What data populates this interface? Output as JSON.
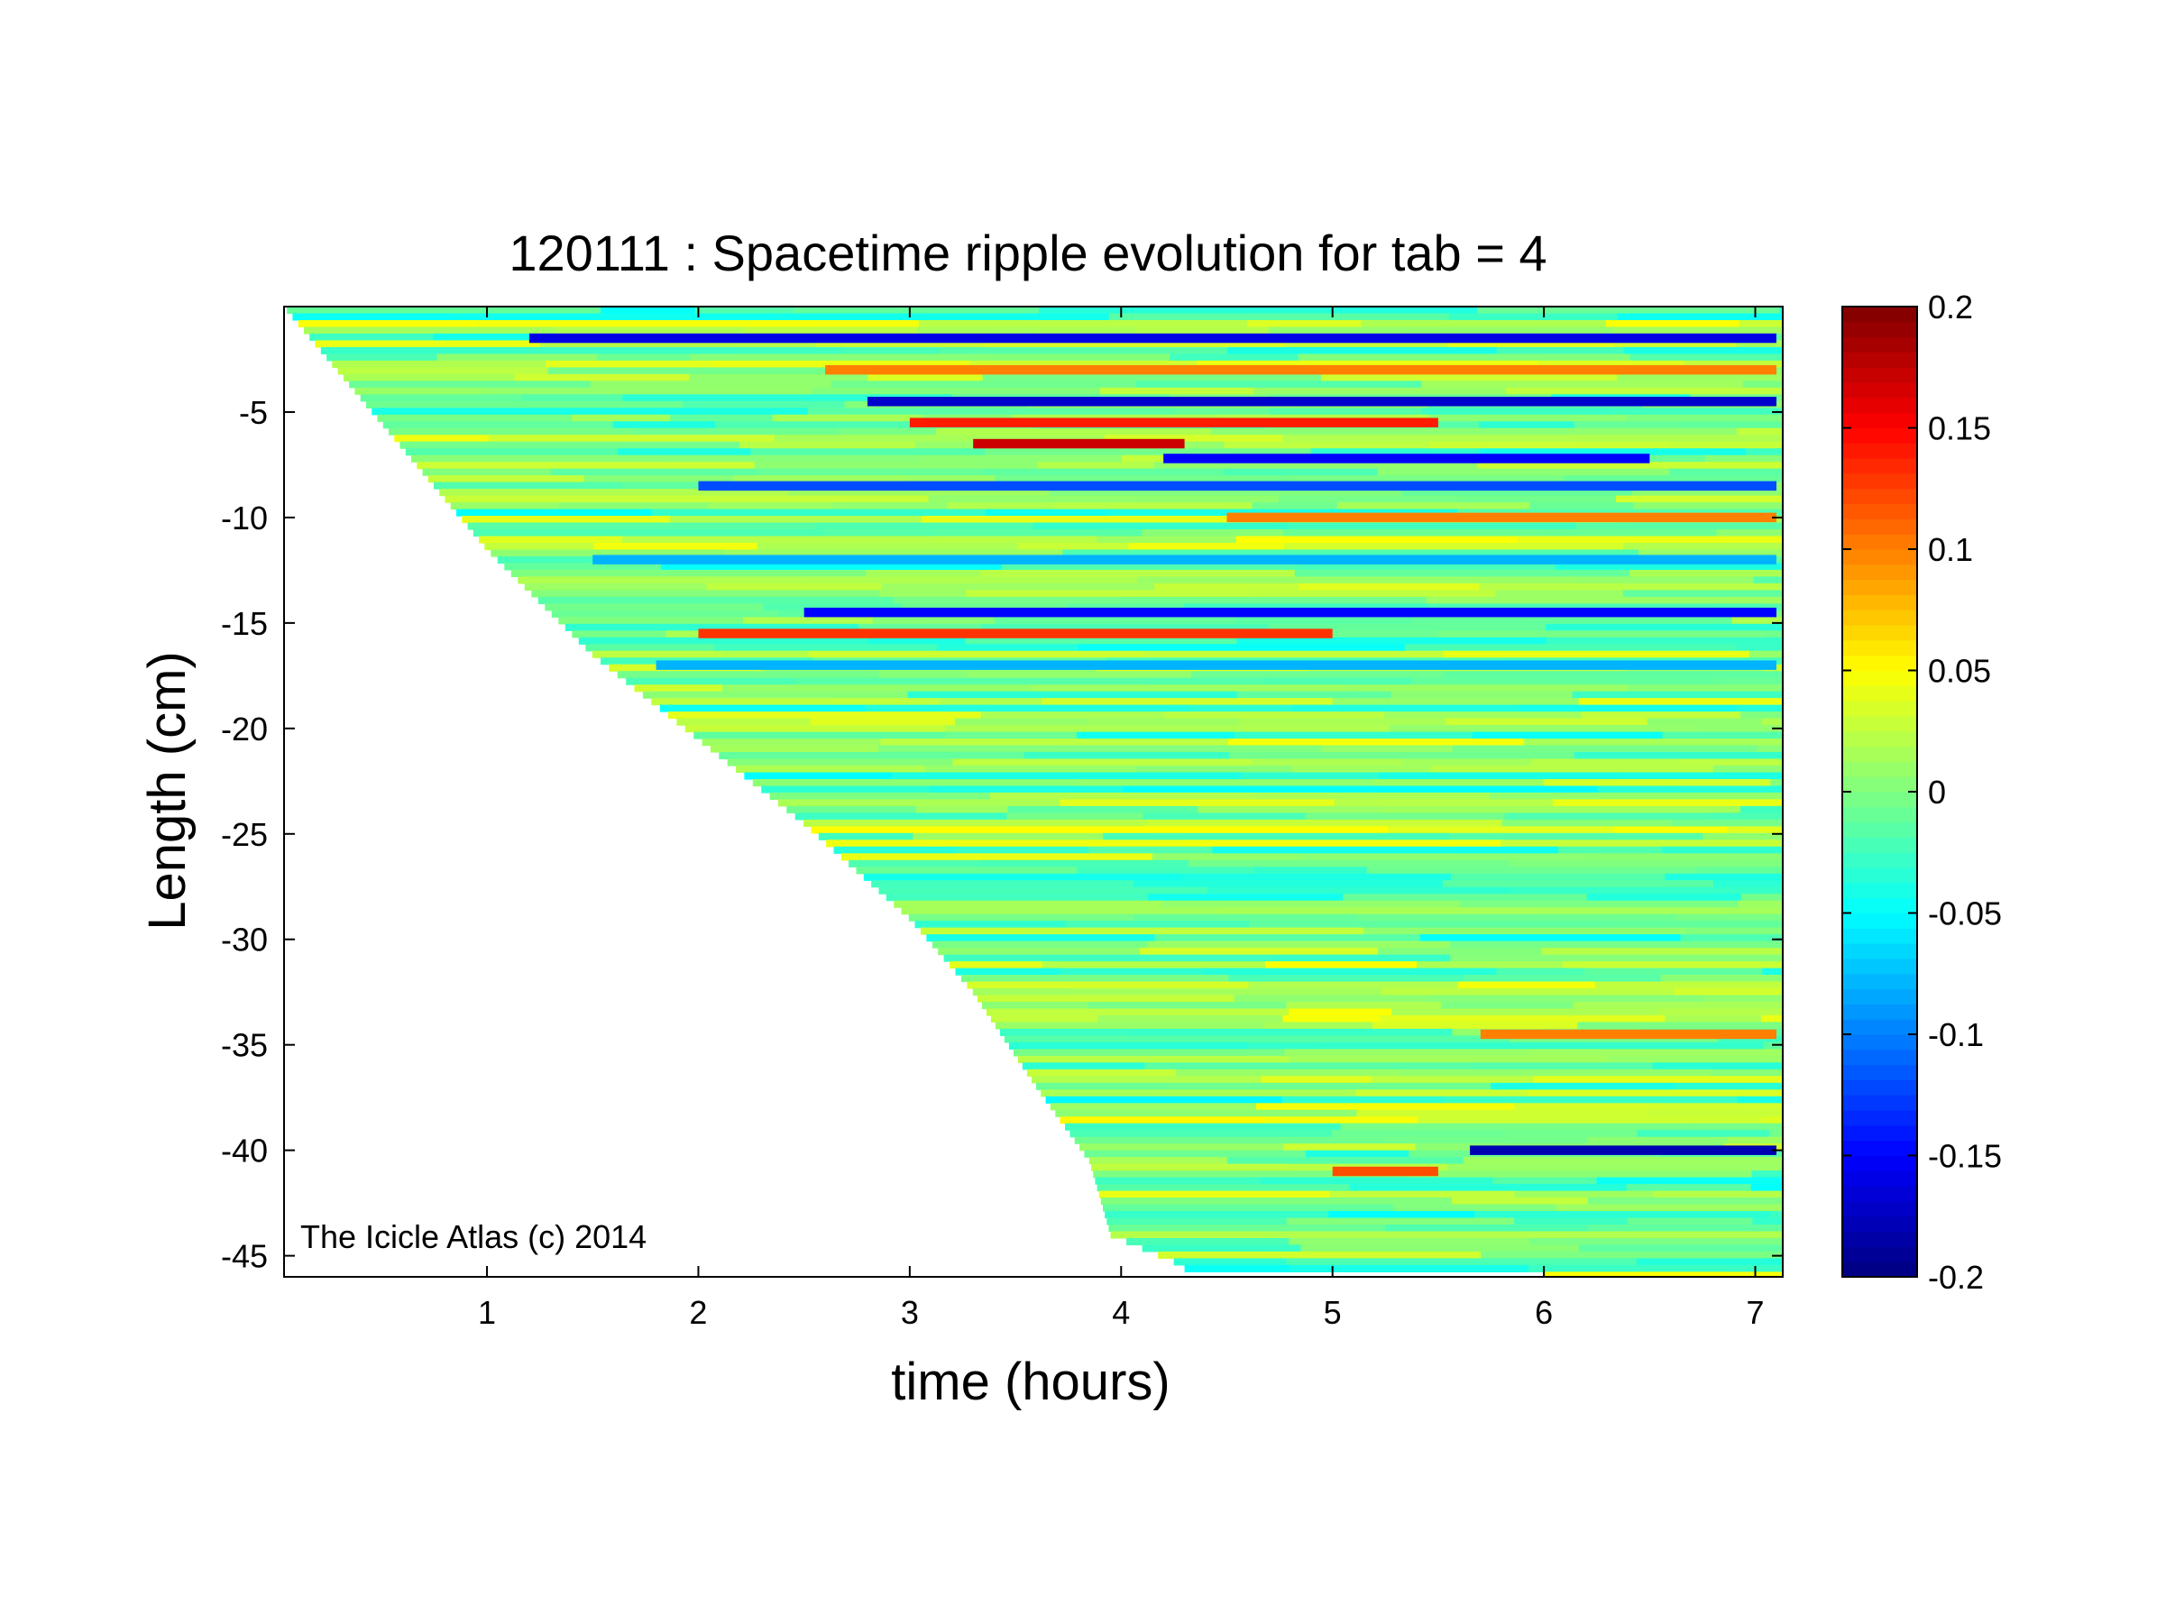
{
  "chart_data": {
    "type": "heatmap",
    "title": "120111 : Spacetime ripple evolution for tab = 4",
    "xlabel": "time (hours)",
    "ylabel": "Length (cm)",
    "xlim": [
      0.04,
      7.13
    ],
    "ylim": [
      -46,
      0
    ],
    "x_ticks": [
      1,
      2,
      3,
      4,
      5,
      6,
      7
    ],
    "x_tick_labels": [
      "1",
      "2",
      "3",
      "4",
      "5",
      "6",
      "7"
    ],
    "y_ticks": [
      -5,
      -10,
      -15,
      -20,
      -25,
      -30,
      -35,
      -40,
      -45
    ],
    "y_tick_labels": [
      "-5",
      "-10",
      "-15",
      "-20",
      "-25",
      "-30",
      "-35",
      "-40",
      "-45"
    ],
    "colorbar": {
      "colormap": "jet",
      "clim": [
        -0.2,
        0.2
      ],
      "ticks": [
        0.2,
        0.15,
        0.1,
        0.05,
        0,
        -0.05,
        -0.1,
        -0.15,
        -0.2
      ],
      "tick_labels": [
        "0.2",
        "0.15",
        "0.1",
        "0.05",
        "0",
        "-0.05",
        "-0.1",
        "-0.15",
        "-0.2"
      ]
    },
    "growth_front": {
      "description_x": [
        0.04,
        0.5,
        1.0,
        1.5,
        2.0,
        2.5,
        3.0,
        3.3,
        3.6,
        3.85,
        3.95,
        4.3
      ],
      "length_cm": [
        0,
        -5.5,
        -11.5,
        -16.5,
        -20.5,
        -24.5,
        -29.0,
        -32.5,
        -37.0,
        -40.5,
        -44.0,
        -45.5
      ]
    },
    "strong_ripples": [
      {
        "length_cm": -1.5,
        "t_start": 1.2,
        "t_end": 7.1,
        "value": -0.16
      },
      {
        "length_cm": -3.0,
        "t_start": 2.6,
        "t_end": 7.1,
        "value": 0.1
      },
      {
        "length_cm": -4.5,
        "t_start": 2.8,
        "t_end": 7.1,
        "value": -0.17
      },
      {
        "length_cm": -5.5,
        "t_start": 3.0,
        "t_end": 5.5,
        "value": 0.14
      },
      {
        "length_cm": -6.5,
        "t_start": 3.3,
        "t_end": 4.3,
        "value": 0.17
      },
      {
        "length_cm": -7.2,
        "t_start": 4.2,
        "t_end": 6.5,
        "value": -0.15
      },
      {
        "length_cm": -8.5,
        "t_start": 2.0,
        "t_end": 7.1,
        "value": -0.12
      },
      {
        "length_cm": -10.0,
        "t_start": 4.5,
        "t_end": 7.1,
        "value": 0.1
      },
      {
        "length_cm": -12.0,
        "t_start": 1.5,
        "t_end": 7.1,
        "value": -0.08
      },
      {
        "length_cm": -14.5,
        "t_start": 2.5,
        "t_end": 7.1,
        "value": -0.15
      },
      {
        "length_cm": -15.5,
        "t_start": 2.0,
        "t_end": 5.0,
        "value": 0.13
      },
      {
        "length_cm": -17.0,
        "t_start": 1.8,
        "t_end": 7.1,
        "value": -0.08
      },
      {
        "length_cm": -34.5,
        "t_start": 5.7,
        "t_end": 7.1,
        "value": 0.1
      },
      {
        "length_cm": -40.0,
        "t_start": 5.65,
        "t_end": 7.1,
        "value": -0.18
      },
      {
        "length_cm": -41.0,
        "t_start": 5.0,
        "t_end": 5.5,
        "value": 0.12
      }
    ]
  },
  "annotation": "The Icicle Atlas (c) 2014"
}
